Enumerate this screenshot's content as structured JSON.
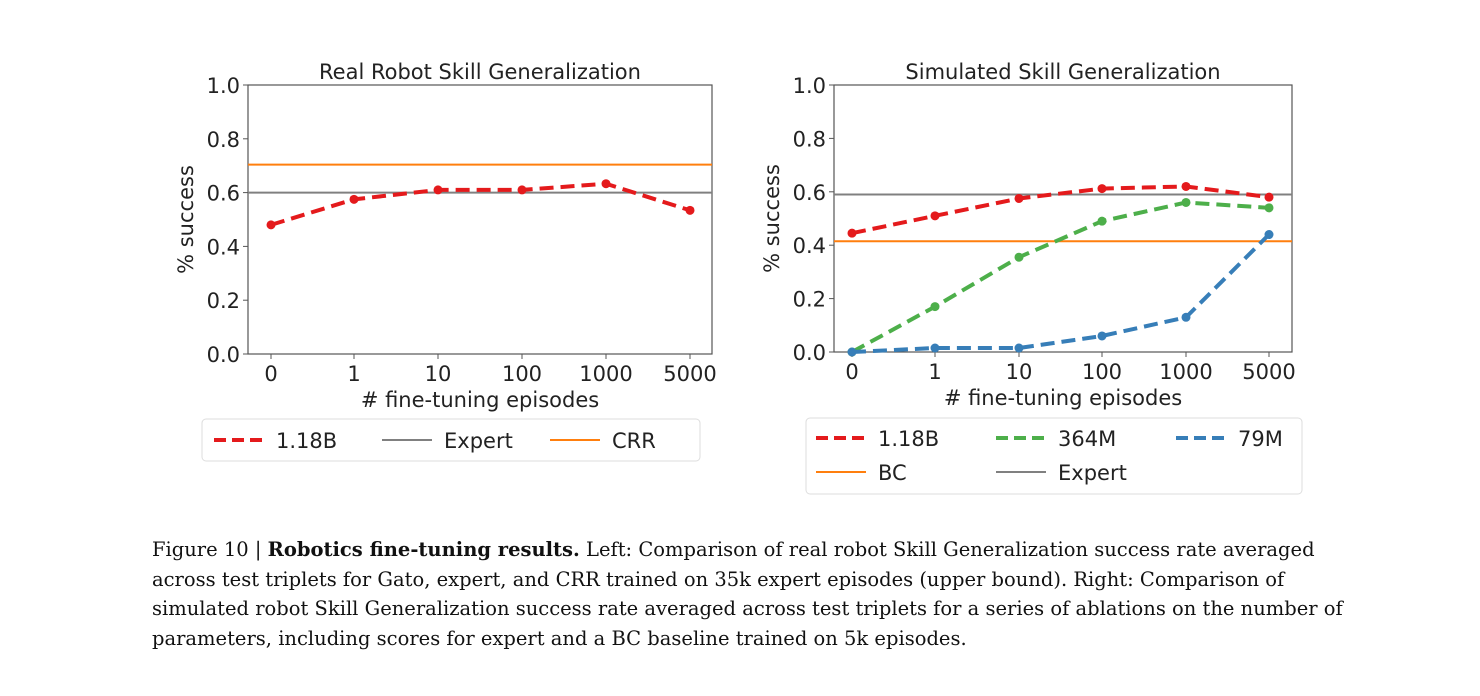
{
  "chart_data": [
    {
      "type": "line",
      "title": "Real Robot Skill Generalization",
      "xlabel": "# fine-tuning episodes",
      "ylabel": "% success",
      "categories": [
        "0",
        "1",
        "10",
        "100",
        "1000",
        "5000"
      ],
      "ylim": [
        0,
        1.0
      ],
      "yticks": [
        "0.0",
        "0.2",
        "0.4",
        "0.6",
        "0.8",
        "1.0"
      ],
      "grid": false,
      "series": [
        {
          "name": "1.18B",
          "values": [
            0.48,
            0.575,
            0.61,
            0.61,
            0.633,
            0.534
          ],
          "color": "#e41a1c",
          "style": "dashed-markers"
        }
      ],
      "hlines": [
        {
          "name": "Expert",
          "value": 0.6,
          "color": "#808080"
        },
        {
          "name": "CRR",
          "value": 0.704,
          "color": "#ff7f0e"
        }
      ],
      "legend": {
        "placement": "bottom",
        "items": [
          "1.18B",
          "Expert",
          "CRR"
        ]
      }
    },
    {
      "type": "line",
      "title": "Simulated Skill Generalization",
      "xlabel": "# fine-tuning episodes",
      "ylabel": "% success",
      "categories": [
        "0",
        "1",
        "10",
        "100",
        "1000",
        "5000"
      ],
      "ylim": [
        0,
        1.0
      ],
      "yticks": [
        "0.0",
        "0.2",
        "0.4",
        "0.6",
        "0.8",
        "1.0"
      ],
      "grid": false,
      "series": [
        {
          "name": "1.18B",
          "values": [
            0.445,
            0.51,
            0.575,
            0.612,
            0.62,
            0.58
          ],
          "color": "#e41a1c",
          "style": "dashed-markers"
        },
        {
          "name": "364M",
          "values": [
            0.0,
            0.17,
            0.355,
            0.49,
            0.56,
            0.54
          ],
          "color": "#4daf4a",
          "style": "dashed-markers"
        },
        {
          "name": "79M",
          "values": [
            0.0,
            0.015,
            0.015,
            0.06,
            0.13,
            0.44
          ],
          "color": "#377eb8",
          "style": "dashed-markers"
        }
      ],
      "hlines": [
        {
          "name": "BC",
          "value": 0.415,
          "color": "#ff7f0e"
        },
        {
          "name": "Expert",
          "value": 0.59,
          "color": "#808080"
        }
      ],
      "legend": {
        "placement": "bottom",
        "items": [
          "1.18B",
          "364M",
          "79M",
          "BC",
          "Expert"
        ]
      }
    }
  ],
  "caption": {
    "label": "Figure 10 | ",
    "bold": "Robotics fine-tuning results.",
    "text": " Left: Comparison of real robot Skill Generalization success rate averaged across test triplets for Gato, expert, and CRR trained on 35k expert episodes (upper bound). Right: Comparison of simulated robot Skill Generalization success rate averaged across test triplets for a series of ablations on the number of parameters, including scores for expert and a BC baseline trained on 5k episodes."
  }
}
